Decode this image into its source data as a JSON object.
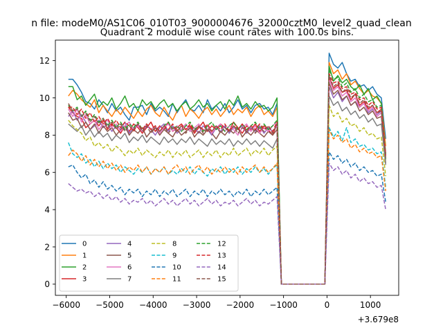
{
  "chart_data": {
    "type": "line",
    "suptitle": "n file: modeM0/AS1C06_010T03_9000004676_32000cztM0_level2_quad_clean",
    "title": "Quadrant 2 module wise count rates with 100.0s bins.",
    "xlabel": "",
    "ylabel": "",
    "x_offset_label": "+3.679e8",
    "xlim": [
      -6250,
      1650
    ],
    "ylim": [
      -0.6,
      13.1
    ],
    "xticks": [
      -6000,
      -5000,
      -4000,
      -3000,
      -2000,
      -1000,
      0,
      1000
    ],
    "xtick_labels": [
      "−6000",
      "−5000",
      "−4000",
      "−3000",
      "−2000",
      "−1000",
      "0",
      "1000"
    ],
    "yticks": [
      0,
      2,
      4,
      6,
      8,
      10,
      12
    ],
    "ytick_labels": [
      "0",
      "2",
      "4",
      "6",
      "8",
      "10",
      "12"
    ],
    "x": [
      -5950,
      -5850,
      -5750,
      -5650,
      -5550,
      -5450,
      -5350,
      -5250,
      -5150,
      -5050,
      -4950,
      -4850,
      -4750,
      -4650,
      -4550,
      -4450,
      -4350,
      -4250,
      -4150,
      -4050,
      -3950,
      -3850,
      -3750,
      -3650,
      -3550,
      -3450,
      -3350,
      -3250,
      -3150,
      -3050,
      -2950,
      -2850,
      -2750,
      -2650,
      -2550,
      -2450,
      -2350,
      -2250,
      -2150,
      -2050,
      -1950,
      -1850,
      -1750,
      -1650,
      -1550,
      -1450,
      -1350,
      -1250,
      -1150,
      -1050,
      -150,
      -50,
      50,
      150,
      250,
      350,
      450,
      550,
      650,
      750,
      850,
      950,
      1050,
      1150,
      1250,
      1350
    ],
    "legend": {
      "location": "lower-left",
      "columns": 4
    },
    "series": [
      {
        "name": "0",
        "color": "#1f77b4",
        "dash": "solid",
        "values": [
          11.0,
          11.0,
          10.7,
          10.3,
          9.8,
          9.7,
          9.4,
          9.9,
          9.6,
          9.2,
          9.7,
          9.3,
          9.5,
          9.1,
          8.8,
          9.5,
          9.5,
          9.6,
          9.1,
          9.7,
          9.3,
          9.5,
          9.3,
          9.0,
          9.7,
          9.2,
          9.6,
          9.9,
          9.4,
          9.3,
          9.6,
          9.2,
          9.9,
          9.4,
          9.6,
          9.3,
          9.7,
          9.2,
          9.5,
          9.9,
          9.4,
          9.6,
          9.2,
          9.6,
          9.7,
          9.4,
          9.5,
          9.1,
          9.7,
          0.0,
          0.0,
          0.0,
          12.4,
          11.8,
          11.6,
          11.9,
          11.3,
          10.9,
          11.0,
          10.6,
          10.7,
          10.4,
          10.6,
          10.2,
          10.0,
          7.8
        ]
      },
      {
        "name": "1",
        "color": "#ff7f0e",
        "dash": "solid",
        "values": [
          10.1,
          10.4,
          10.2,
          9.9,
          9.7,
          9.5,
          9.9,
          9.2,
          9.6,
          9.3,
          9.0,
          9.4,
          9.1,
          9.5,
          9.2,
          8.9,
          9.3,
          9.0,
          9.4,
          9.6,
          9.2,
          9.0,
          9.5,
          9.1,
          8.8,
          9.3,
          9.6,
          9.0,
          9.4,
          9.2,
          8.9,
          9.3,
          9.5,
          9.1,
          9.4,
          9.0,
          9.3,
          9.6,
          9.1,
          9.4,
          9.2,
          9.5,
          9.0,
          9.4,
          9.6,
          9.1,
          9.3,
          9.0,
          9.5,
          0.0,
          0.0,
          0.0,
          11.9,
          11.3,
          11.5,
          11.0,
          11.3,
          10.7,
          10.9,
          10.5,
          10.2,
          10.4,
          10.1,
          10.0,
          9.7,
          7.4
        ]
      },
      {
        "name": "2",
        "color": "#2ca02c",
        "dash": "solid",
        "values": [
          10.6,
          10.6,
          9.9,
          10.1,
          9.6,
          9.9,
          10.2,
          9.5,
          9.8,
          9.6,
          10.0,
          9.4,
          9.7,
          10.1,
          9.5,
          9.7,
          9.3,
          9.9,
          9.6,
          9.8,
          9.4,
          9.7,
          9.9,
          9.5,
          9.7,
          9.3,
          9.6,
          9.8,
          9.4,
          9.6,
          9.9,
          9.5,
          9.7,
          9.3,
          9.6,
          9.8,
          9.4,
          9.9,
          9.6,
          10.1,
          9.5,
          9.7,
          9.4,
          9.8,
          9.5,
          9.6,
          9.3,
          9.5,
          10.0,
          0.0,
          0.0,
          0.0,
          11.7,
          10.9,
          11.2,
          10.8,
          11.0,
          10.6,
          10.4,
          10.7,
          10.2,
          10.5,
          9.9,
          10.1,
          9.7,
          6.7
        ]
      },
      {
        "name": "3",
        "color": "#d62728",
        "dash": "solid",
        "values": [
          9.5,
          9.2,
          9.0,
          8.9,
          8.4,
          8.6,
          8.8,
          8.5,
          8.8,
          8.3,
          8.6,
          8.4,
          8.1,
          8.5,
          8.2,
          8.6,
          8.4,
          8.1,
          8.4,
          8.7,
          8.2,
          8.5,
          8.3,
          8.7,
          8.2,
          8.4,
          8.6,
          8.3,
          8.5,
          8.1,
          8.4,
          8.7,
          8.2,
          8.5,
          8.3,
          8.6,
          8.4,
          8.2,
          8.7,
          8.4,
          8.1,
          8.5,
          8.3,
          8.6,
          8.2,
          8.5,
          8.3,
          8.0,
          8.6,
          0.0,
          0.0,
          0.0,
          11.1,
          10.5,
          10.7,
          10.3,
          10.4,
          9.9,
          10.2,
          9.6,
          9.8,
          9.4,
          9.6,
          9.2,
          9.4,
          7.0
        ]
      },
      {
        "name": "4",
        "color": "#9467bd",
        "dash": "solid",
        "values": [
          9.0,
          9.3,
          8.8,
          9.1,
          8.7,
          8.3,
          8.5,
          8.8,
          8.4,
          8.6,
          8.2,
          8.5,
          8.3,
          8.7,
          8.1,
          8.4,
          8.6,
          8.2,
          8.5,
          8.3,
          8.0,
          8.4,
          8.6,
          8.2,
          8.5,
          8.1,
          8.3,
          8.6,
          8.2,
          8.4,
          8.1,
          8.5,
          8.3,
          8.0,
          8.4,
          8.2,
          8.5,
          8.1,
          8.4,
          8.3,
          8.5,
          8.1,
          8.4,
          8.2,
          8.5,
          8.1,
          8.4,
          8.2,
          8.5,
          0.0,
          0.0,
          0.0,
          10.6,
          10.0,
          10.3,
          9.8,
          10.1,
          9.6,
          9.8,
          9.5,
          9.7,
          9.2,
          9.4,
          9.1,
          9.3,
          6.9
        ]
      },
      {
        "name": "5",
        "color": "#8c564b",
        "dash": "solid",
        "values": [
          9.2,
          8.8,
          8.9,
          8.4,
          8.7,
          8.3,
          8.6,
          8.1,
          8.5,
          8.2,
          8.4,
          8.0,
          8.3,
          8.5,
          8.0,
          8.3,
          8.1,
          8.4,
          7.9,
          8.2,
          8.4,
          8.0,
          8.3,
          8.1,
          7.9,
          8.3,
          8.0,
          8.2,
          8.4,
          7.9,
          8.2,
          8.0,
          8.3,
          8.1,
          7.8,
          8.2,
          8.0,
          8.3,
          8.1,
          8.4,
          7.9,
          8.2,
          8.0,
          8.3,
          8.1,
          7.9,
          8.2,
          8.0,
          8.3,
          0.0,
          0.0,
          0.0,
          10.8,
          10.2,
          10.4,
          9.9,
          10.1,
          9.6,
          9.8,
          9.3,
          9.5,
          9.1,
          9.3,
          8.9,
          9.0,
          6.5
        ]
      },
      {
        "name": "6",
        "color": "#e377c2",
        "dash": "solid",
        "values": [
          9.4,
          9.0,
          9.4,
          8.7,
          9.1,
          8.6,
          8.8,
          8.3,
          8.6,
          8.8,
          8.4,
          8.6,
          8.2,
          8.5,
          8.7,
          8.3,
          8.5,
          8.2,
          8.6,
          8.3,
          8.5,
          8.1,
          8.4,
          8.6,
          8.2,
          8.5,
          8.3,
          8.6,
          8.2,
          8.4,
          8.6,
          8.2,
          8.5,
          8.1,
          8.4,
          8.6,
          8.2,
          8.5,
          8.3,
          8.0,
          8.4,
          8.6,
          8.2,
          8.5,
          8.1,
          8.4,
          8.2,
          8.5,
          8.7,
          0.0,
          0.0,
          0.0,
          11.0,
          10.4,
          10.6,
          10.1,
          10.3,
          9.8,
          10.0,
          9.5,
          9.7,
          9.3,
          9.5,
          9.0,
          9.2,
          7.1
        ]
      },
      {
        "name": "7",
        "color": "#7f7f7f",
        "dash": "solid",
        "values": [
          8.6,
          8.4,
          8.2,
          8.5,
          8.0,
          8.3,
          7.9,
          8.2,
          7.9,
          8.1,
          7.7,
          8.0,
          7.8,
          8.1,
          7.6,
          7.9,
          7.7,
          8.0,
          7.6,
          7.9,
          7.7,
          7.5,
          7.9,
          7.6,
          7.8,
          7.5,
          7.8,
          7.6,
          7.9,
          7.5,
          7.8,
          7.6,
          7.4,
          7.8,
          7.5,
          7.7,
          7.5,
          7.8,
          7.4,
          7.7,
          7.5,
          7.8,
          7.5,
          7.7,
          7.4,
          7.7,
          7.5,
          7.3,
          7.8,
          0.0,
          0.0,
          0.0,
          10.1,
          9.6,
          9.8,
          9.3,
          9.5,
          9.1,
          9.3,
          8.9,
          9.1,
          8.7,
          8.9,
          8.5,
          8.6,
          6.4
        ]
      },
      {
        "name": "8",
        "color": "#bcbd22",
        "dash": "dashed",
        "values": [
          8.8,
          8.5,
          8.3,
          8.1,
          7.7,
          7.9,
          7.4,
          7.6,
          7.3,
          7.5,
          7.1,
          7.4,
          7.2,
          6.9,
          7.2,
          7.0,
          7.3,
          6.9,
          7.2,
          7.0,
          6.8,
          7.1,
          6.9,
          7.2,
          6.8,
          7.1,
          6.9,
          7.2,
          6.8,
          7.0,
          7.2,
          6.8,
          7.1,
          6.9,
          7.2,
          6.8,
          7.1,
          6.9,
          7.3,
          6.9,
          7.1,
          7.3,
          6.9,
          7.2,
          7.0,
          7.3,
          6.9,
          7.2,
          7.4,
          0.0,
          0.0,
          0.0,
          9.6,
          9.0,
          9.2,
          8.7,
          8.9,
          8.5,
          8.6,
          8.2,
          8.4,
          8.0,
          8.1,
          7.8,
          7.9,
          5.8
        ]
      },
      {
        "name": "9",
        "color": "#17becf",
        "dash": "dashed",
        "values": [
          7.6,
          7.0,
          6.8,
          7.0,
          6.5,
          6.7,
          6.3,
          6.6,
          6.2,
          6.5,
          6.2,
          6.4,
          6.0,
          6.3,
          6.1,
          5.9,
          6.2,
          6.0,
          6.3,
          5.9,
          6.2,
          6.0,
          6.3,
          5.9,
          6.1,
          5.9,
          6.2,
          6.0,
          6.3,
          5.9,
          6.2,
          6.0,
          5.8,
          6.2,
          6.0,
          6.3,
          5.9,
          6.2,
          6.0,
          6.3,
          5.9,
          6.2,
          6.0,
          6.3,
          6.0,
          6.2,
          5.9,
          6.2,
          6.4,
          0.0,
          0.0,
          0.0,
          8.4,
          7.9,
          8.2,
          7.7,
          8.4,
          7.6,
          7.8,
          7.4,
          7.5,
          7.2,
          7.3,
          7.0,
          7.1,
          5.2
        ]
      },
      {
        "name": "10",
        "color": "#1f77b4",
        "dash": "dashed",
        "values": [
          6.3,
          6.4,
          6.0,
          5.7,
          5.9,
          5.4,
          5.6,
          5.2,
          5.5,
          5.1,
          5.3,
          5.0,
          5.2,
          4.8,
          5.1,
          4.9,
          5.1,
          4.7,
          5.0,
          4.8,
          5.1,
          4.7,
          5.0,
          4.8,
          5.1,
          4.7,
          4.9,
          5.1,
          4.7,
          5.0,
          4.8,
          5.1,
          4.7,
          5.0,
          4.8,
          5.1,
          4.8,
          5.0,
          4.7,
          5.0,
          4.8,
          5.1,
          4.7,
          5.0,
          4.8,
          5.1,
          4.8,
          5.0,
          5.2,
          0.0,
          0.0,
          0.0,
          7.1,
          6.7,
          6.9,
          6.5,
          6.7,
          6.3,
          6.5,
          6.1,
          6.3,
          6.0,
          6.1,
          5.8,
          5.9,
          4.4
        ]
      },
      {
        "name": "11",
        "color": "#ff7f0e",
        "dash": "dashed",
        "values": [
          6.9,
          7.2,
          7.0,
          6.6,
          6.9,
          6.4,
          6.7,
          6.3,
          6.6,
          6.2,
          6.5,
          6.1,
          6.4,
          6.0,
          6.3,
          6.1,
          6.4,
          6.0,
          6.3,
          5.9,
          6.2,
          6.0,
          6.3,
          5.9,
          6.2,
          6.4,
          6.0,
          6.3,
          5.9,
          6.2,
          6.4,
          6.0,
          6.3,
          5.9,
          6.2,
          6.0,
          6.3,
          6.0,
          6.2,
          5.9,
          6.3,
          6.0,
          6.2,
          6.4,
          6.0,
          6.3,
          6.0,
          6.2,
          6.5,
          0.0,
          0.0,
          0.0,
          8.3,
          7.8,
          8.0,
          7.6,
          7.8,
          7.3,
          7.5,
          7.1,
          7.3,
          7.0,
          7.1,
          6.8,
          6.9,
          5.0
        ]
      },
      {
        "name": "12",
        "color": "#2ca02c",
        "dash": "dashed",
        "values": [
          9.6,
          9.3,
          9.5,
          9.0,
          9.3,
          8.8,
          9.1,
          8.7,
          8.9,
          8.5,
          8.8,
          8.4,
          8.7,
          8.3,
          8.6,
          8.4,
          8.7,
          8.3,
          8.6,
          8.3,
          8.5,
          8.2,
          8.5,
          8.7,
          8.3,
          8.5,
          8.2,
          8.5,
          8.7,
          8.3,
          8.5,
          8.2,
          8.5,
          8.7,
          8.3,
          8.5,
          8.2,
          8.5,
          8.7,
          8.3,
          8.6,
          8.3,
          8.5,
          8.7,
          8.3,
          8.6,
          8.3,
          8.5,
          8.8,
          0.0,
          0.0,
          0.0,
          11.5,
          11.0,
          11.1,
          10.6,
          10.8,
          10.3,
          10.5,
          10.0,
          10.2,
          9.8,
          9.9,
          9.5,
          9.6,
          7.0
        ]
      },
      {
        "name": "13",
        "color": "#d62728",
        "dash": "dashed",
        "values": [
          9.5,
          9.5,
          9.1,
          9.4,
          8.9,
          9.2,
          8.7,
          9.0,
          8.6,
          8.9,
          8.5,
          8.8,
          8.4,
          8.7,
          8.5,
          8.2,
          8.6,
          8.3,
          8.6,
          8.3,
          8.5,
          8.2,
          8.5,
          8.3,
          8.6,
          8.2,
          8.5,
          8.3,
          8.6,
          8.2,
          8.5,
          8.3,
          8.6,
          8.2,
          8.5,
          8.3,
          8.6,
          8.2,
          8.5,
          8.3,
          8.6,
          8.2,
          8.5,
          8.3,
          8.6,
          8.3,
          8.5,
          8.2,
          8.7,
          0.0,
          0.0,
          0.0,
          11.3,
          10.8,
          10.9,
          10.5,
          10.6,
          10.2,
          10.3,
          9.9,
          10.0,
          9.6,
          9.8,
          9.4,
          9.5,
          6.9
        ]
      },
      {
        "name": "14",
        "color": "#9467bd",
        "dash": "dashed",
        "values": [
          5.4,
          5.2,
          5.0,
          5.1,
          4.9,
          5.0,
          4.7,
          4.9,
          4.6,
          4.8,
          4.5,
          4.7,
          4.4,
          4.6,
          4.3,
          4.5,
          4.4,
          4.6,
          4.3,
          4.5,
          4.2,
          4.4,
          4.6,
          4.3,
          4.5,
          4.2,
          4.4,
          4.6,
          4.3,
          4.5,
          4.2,
          4.4,
          4.6,
          4.3,
          4.5,
          4.2,
          4.4,
          4.3,
          4.5,
          4.2,
          4.4,
          4.6,
          4.3,
          4.5,
          4.2,
          4.4,
          4.3,
          4.5,
          4.7,
          0.0,
          0.0,
          0.0,
          6.5,
          6.1,
          6.3,
          5.9,
          6.1,
          5.7,
          5.9,
          5.5,
          5.7,
          5.4,
          5.5,
          5.2,
          5.3,
          4.0
        ]
      },
      {
        "name": "15",
        "color": "#8c564b",
        "dash": "dashed",
        "values": [
          9.7,
          9.3,
          9.4,
          9.0,
          9.2,
          8.7,
          9.0,
          8.6,
          8.9,
          8.4,
          8.7,
          8.3,
          8.6,
          8.2,
          8.5,
          8.3,
          8.6,
          8.2,
          8.5,
          8.1,
          8.4,
          8.2,
          8.5,
          8.1,
          8.4,
          8.2,
          8.5,
          8.1,
          8.4,
          8.2,
          8.5,
          8.1,
          8.4,
          8.2,
          8.5,
          8.1,
          8.4,
          8.2,
          8.5,
          8.1,
          8.4,
          8.2,
          8.5,
          8.1,
          8.4,
          8.2,
          8.5,
          8.1,
          8.6,
          0.0,
          0.0,
          0.0,
          11.2,
          10.6,
          10.8,
          10.3,
          10.5,
          10.0,
          10.2,
          9.7,
          9.9,
          9.5,
          9.6,
          9.2,
          9.3,
          6.8
        ]
      }
    ]
  }
}
